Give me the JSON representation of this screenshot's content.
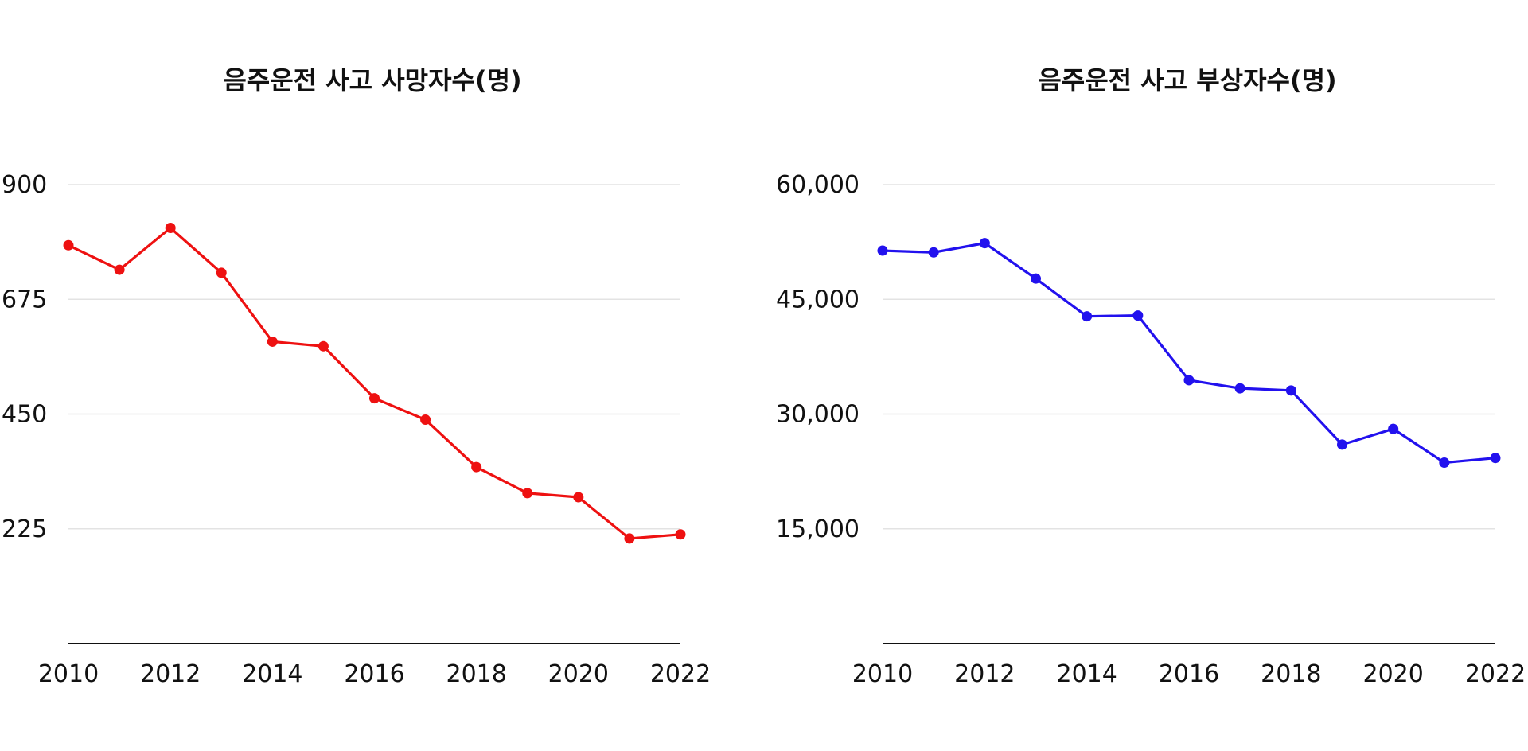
{
  "chart_data": [
    {
      "type": "line",
      "title": "음주운전 사고 사망자수(명)",
      "xlabel": "",
      "ylabel": "",
      "x": [
        2010,
        2011,
        2012,
        2013,
        2014,
        2015,
        2016,
        2017,
        2018,
        2019,
        2020,
        2021,
        2022
      ],
      "x_ticks": [
        "2010",
        "2012",
        "2014",
        "2016",
        "2018",
        "2020",
        "2022"
      ],
      "y_ticks": [
        "900",
        "675",
        "450",
        "225"
      ],
      "y_tick_values": [
        900,
        675,
        450,
        225
      ],
      "ylim": [
        0,
        900
      ],
      "grid": true,
      "series": [
        {
          "name": "사망자수",
          "color": "#ee1111",
          "values": [
            781,
            733,
            815,
            727,
            592,
            583,
            481,
            439,
            346,
            295,
            287,
            206,
            214
          ]
        }
      ]
    },
    {
      "type": "line",
      "title": "음주운전 사고 부상자수(명)",
      "xlabel": "",
      "ylabel": "",
      "x": [
        2010,
        2011,
        2012,
        2013,
        2014,
        2015,
        2016,
        2017,
        2018,
        2019,
        2020,
        2021,
        2022
      ],
      "x_ticks": [
        "2010",
        "2012",
        "2014",
        "2016",
        "2018",
        "2020",
        "2022"
      ],
      "y_ticks": [
        "60,000",
        "45,000",
        "30,000",
        "15,000"
      ],
      "y_tick_values": [
        60000,
        45000,
        30000,
        15000
      ],
      "ylim": [
        0,
        60000
      ],
      "grid": true,
      "series": [
        {
          "name": "부상자수",
          "color": "#2211ee",
          "values": [
            51364,
            51135,
            52345,
            47711,
            42772,
            42880,
            34423,
            33364,
            33086,
            26011,
            28063,
            23653,
            24261
          ]
        }
      ]
    }
  ]
}
